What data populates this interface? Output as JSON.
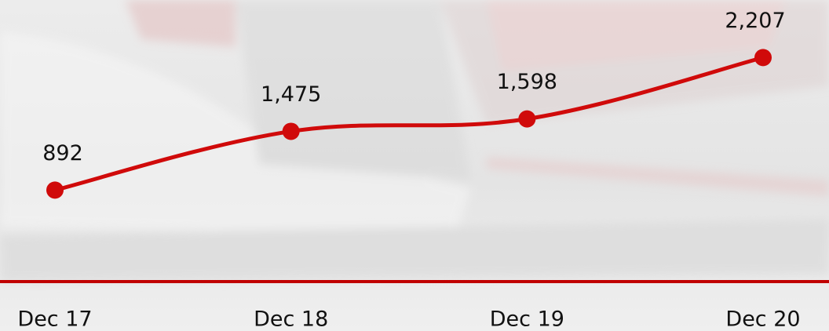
{
  "chart_data": {
    "type": "line",
    "categories": [
      "Dec 17",
      "Dec 18",
      "Dec 19",
      "Dec 20"
    ],
    "series": [
      {
        "color": "#d00a0a",
        "values": [
          892,
          1475,
          1598,
          2207
        ],
        "value_labels": [
          "892",
          "1,475",
          "1,598",
          "2,207"
        ]
      }
    ],
    "ylim": [
      0,
      2778
    ]
  }
}
